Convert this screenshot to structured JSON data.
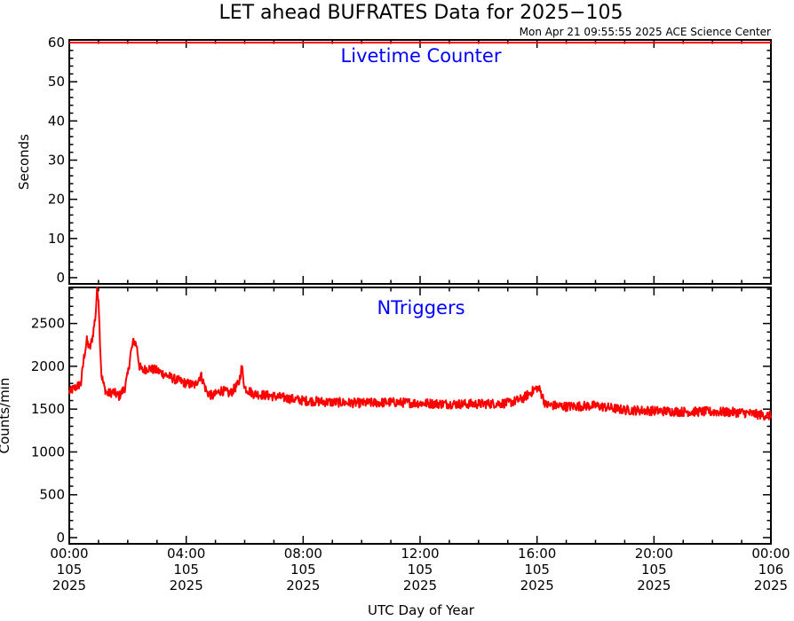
{
  "title": "LET ahead BUFRATES Data for 2025−105",
  "timestamp": "Mon Apr 21 09:55:55 2025 ACE Science Center",
  "xlabel": "UTC Day of Year",
  "colors": {
    "series": "#ff0000",
    "panel_title": "#0000ff",
    "axes": "#000000"
  },
  "x_ticks": [
    {
      "time": "00:00",
      "doy": "105",
      "year": "2025"
    },
    {
      "time": "04:00",
      "doy": "105",
      "year": "2025"
    },
    {
      "time": "08:00",
      "doy": "105",
      "year": "2025"
    },
    {
      "time": "12:00",
      "doy": "105",
      "year": "2025"
    },
    {
      "time": "16:00",
      "doy": "105",
      "year": "2025"
    },
    {
      "time": "20:00",
      "doy": "105",
      "year": "2025"
    },
    {
      "time": "00:00",
      "doy": "106",
      "year": "2025"
    }
  ],
  "chart_data": [
    {
      "type": "line",
      "title": "Livetime Counter",
      "ylabel": "Seconds",
      "xlim": [
        0,
        24
      ],
      "x_unit": "hours UTC",
      "ylim": [
        0,
        60
      ],
      "yticks": [
        0,
        10,
        20,
        30,
        40,
        50,
        60
      ],
      "series": [
        {
          "x": [
            0,
            24
          ],
          "values": [
            60,
            60
          ]
        }
      ]
    },
    {
      "type": "line",
      "title": "NTriggers",
      "ylabel": "Counts/min",
      "xlim": [
        0,
        24
      ],
      "x_unit": "hours UTC",
      "ylim": [
        0,
        2900
      ],
      "yticks": [
        0,
        500,
        1000,
        1500,
        2000,
        2500
      ],
      "series": [
        {
          "x": [
            0,
            0.2,
            0.4,
            0.5,
            0.6,
            0.7,
            0.8,
            0.9,
            0.95,
            1.0,
            1.05,
            1.1,
            1.2,
            1.3,
            1.5,
            1.7,
            1.9,
            2.0,
            2.1,
            2.2,
            2.3,
            2.4,
            2.5,
            2.7,
            3.0,
            3.3,
            3.6,
            4.0,
            4.3,
            4.5,
            4.7,
            4.9,
            5.2,
            5.5,
            5.8,
            5.9,
            6.0,
            6.3,
            7.0,
            8.0,
            9.0,
            10.0,
            11.0,
            12.0,
            13.0,
            14.0,
            15.0,
            15.5,
            16.0,
            16.1,
            16.3,
            17.0,
            18.0,
            19.0,
            20.0,
            21.0,
            22.0,
            23.0,
            24.0
          ],
          "values": [
            1700,
            1750,
            1800,
            2100,
            2300,
            2200,
            2350,
            2600,
            2900,
            2800,
            2300,
            1900,
            1750,
            1680,
            1700,
            1650,
            1750,
            1900,
            2150,
            2300,
            2250,
            2000,
            1950,
            1980,
            1950,
            1900,
            1850,
            1800,
            1780,
            1900,
            1700,
            1650,
            1720,
            1680,
            1800,
            2000,
            1750,
            1680,
            1650,
            1600,
            1580,
            1570,
            1580,
            1570,
            1560,
            1560,
            1570,
            1620,
            1750,
            1720,
            1550,
            1530,
            1540,
            1490,
            1480,
            1470,
            1470,
            1460,
            1420
          ]
        }
      ]
    }
  ]
}
